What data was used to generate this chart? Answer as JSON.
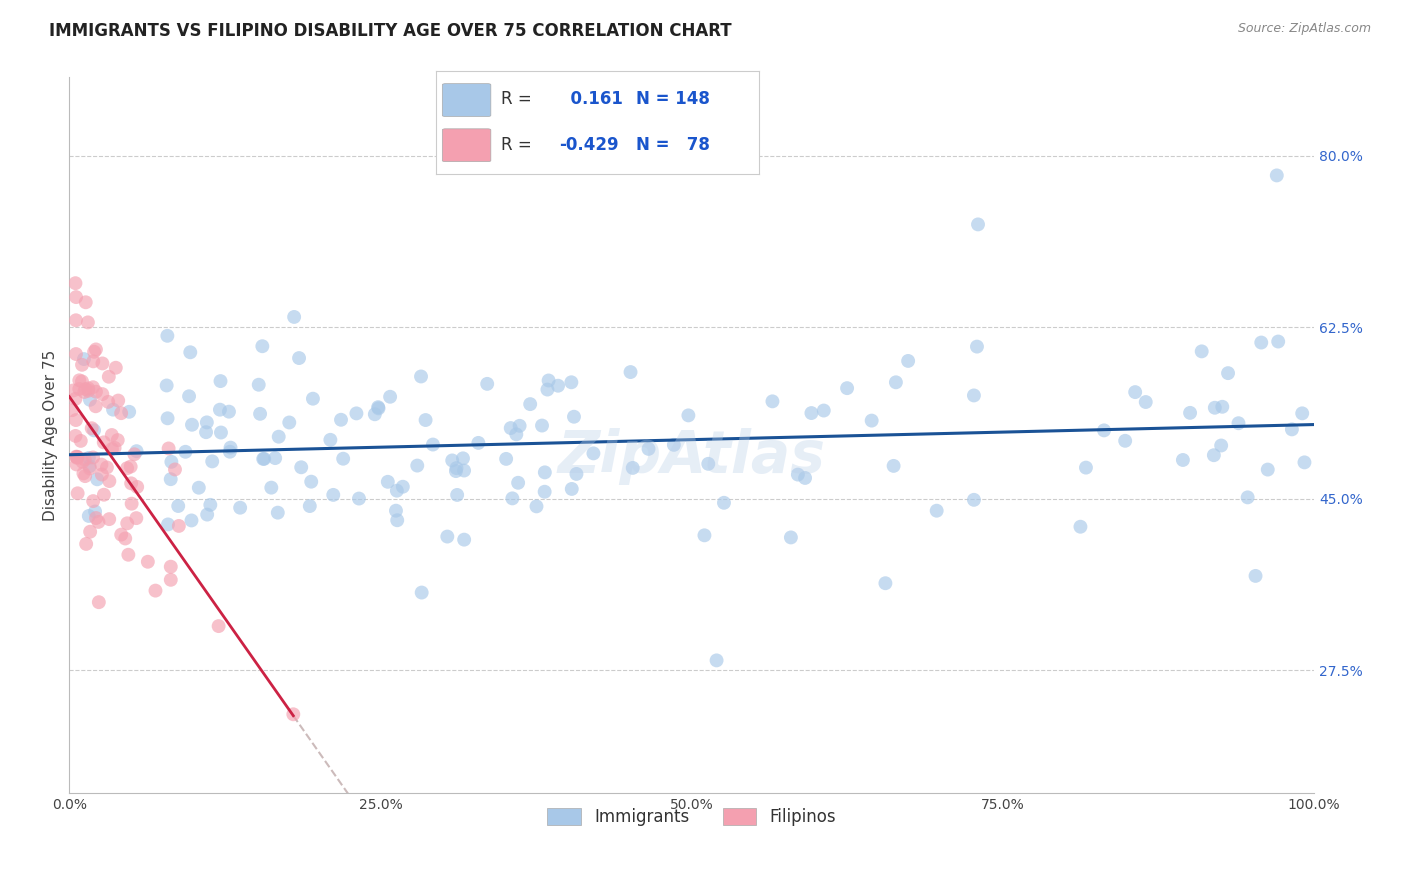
{
  "title": "IMMIGRANTS VS FILIPINO DISABILITY AGE OVER 75 CORRELATION CHART",
  "source": "Source: ZipAtlas.com",
  "ylabel": "Disability Age Over 75",
  "xlim": [
    0.0,
    1.0
  ],
  "ylim": [
    0.15,
    0.88
  ],
  "ytick_positions": [
    0.275,
    0.45,
    0.625,
    0.8
  ],
  "ytick_labels": [
    "27.5%",
    "45.0%",
    "62.5%",
    "80.0%"
  ],
  "immigrants_R": 0.161,
  "immigrants_N": 148,
  "filipinos_R": -0.429,
  "filipinos_N": 78,
  "immigrants_color": "#a8c8e8",
  "filipinos_color": "#f4a0b0",
  "immigrants_line_color": "#1a5296",
  "filipinos_line_color": "#cc2244",
  "dashed_line_color": "#ccbbbb",
  "grid_color": "#cccccc",
  "background_color": "#ffffff",
  "title_fontsize": 12,
  "axis_label_fontsize": 11,
  "tick_fontsize": 10,
  "watermark_text": "ZipAtlas"
}
